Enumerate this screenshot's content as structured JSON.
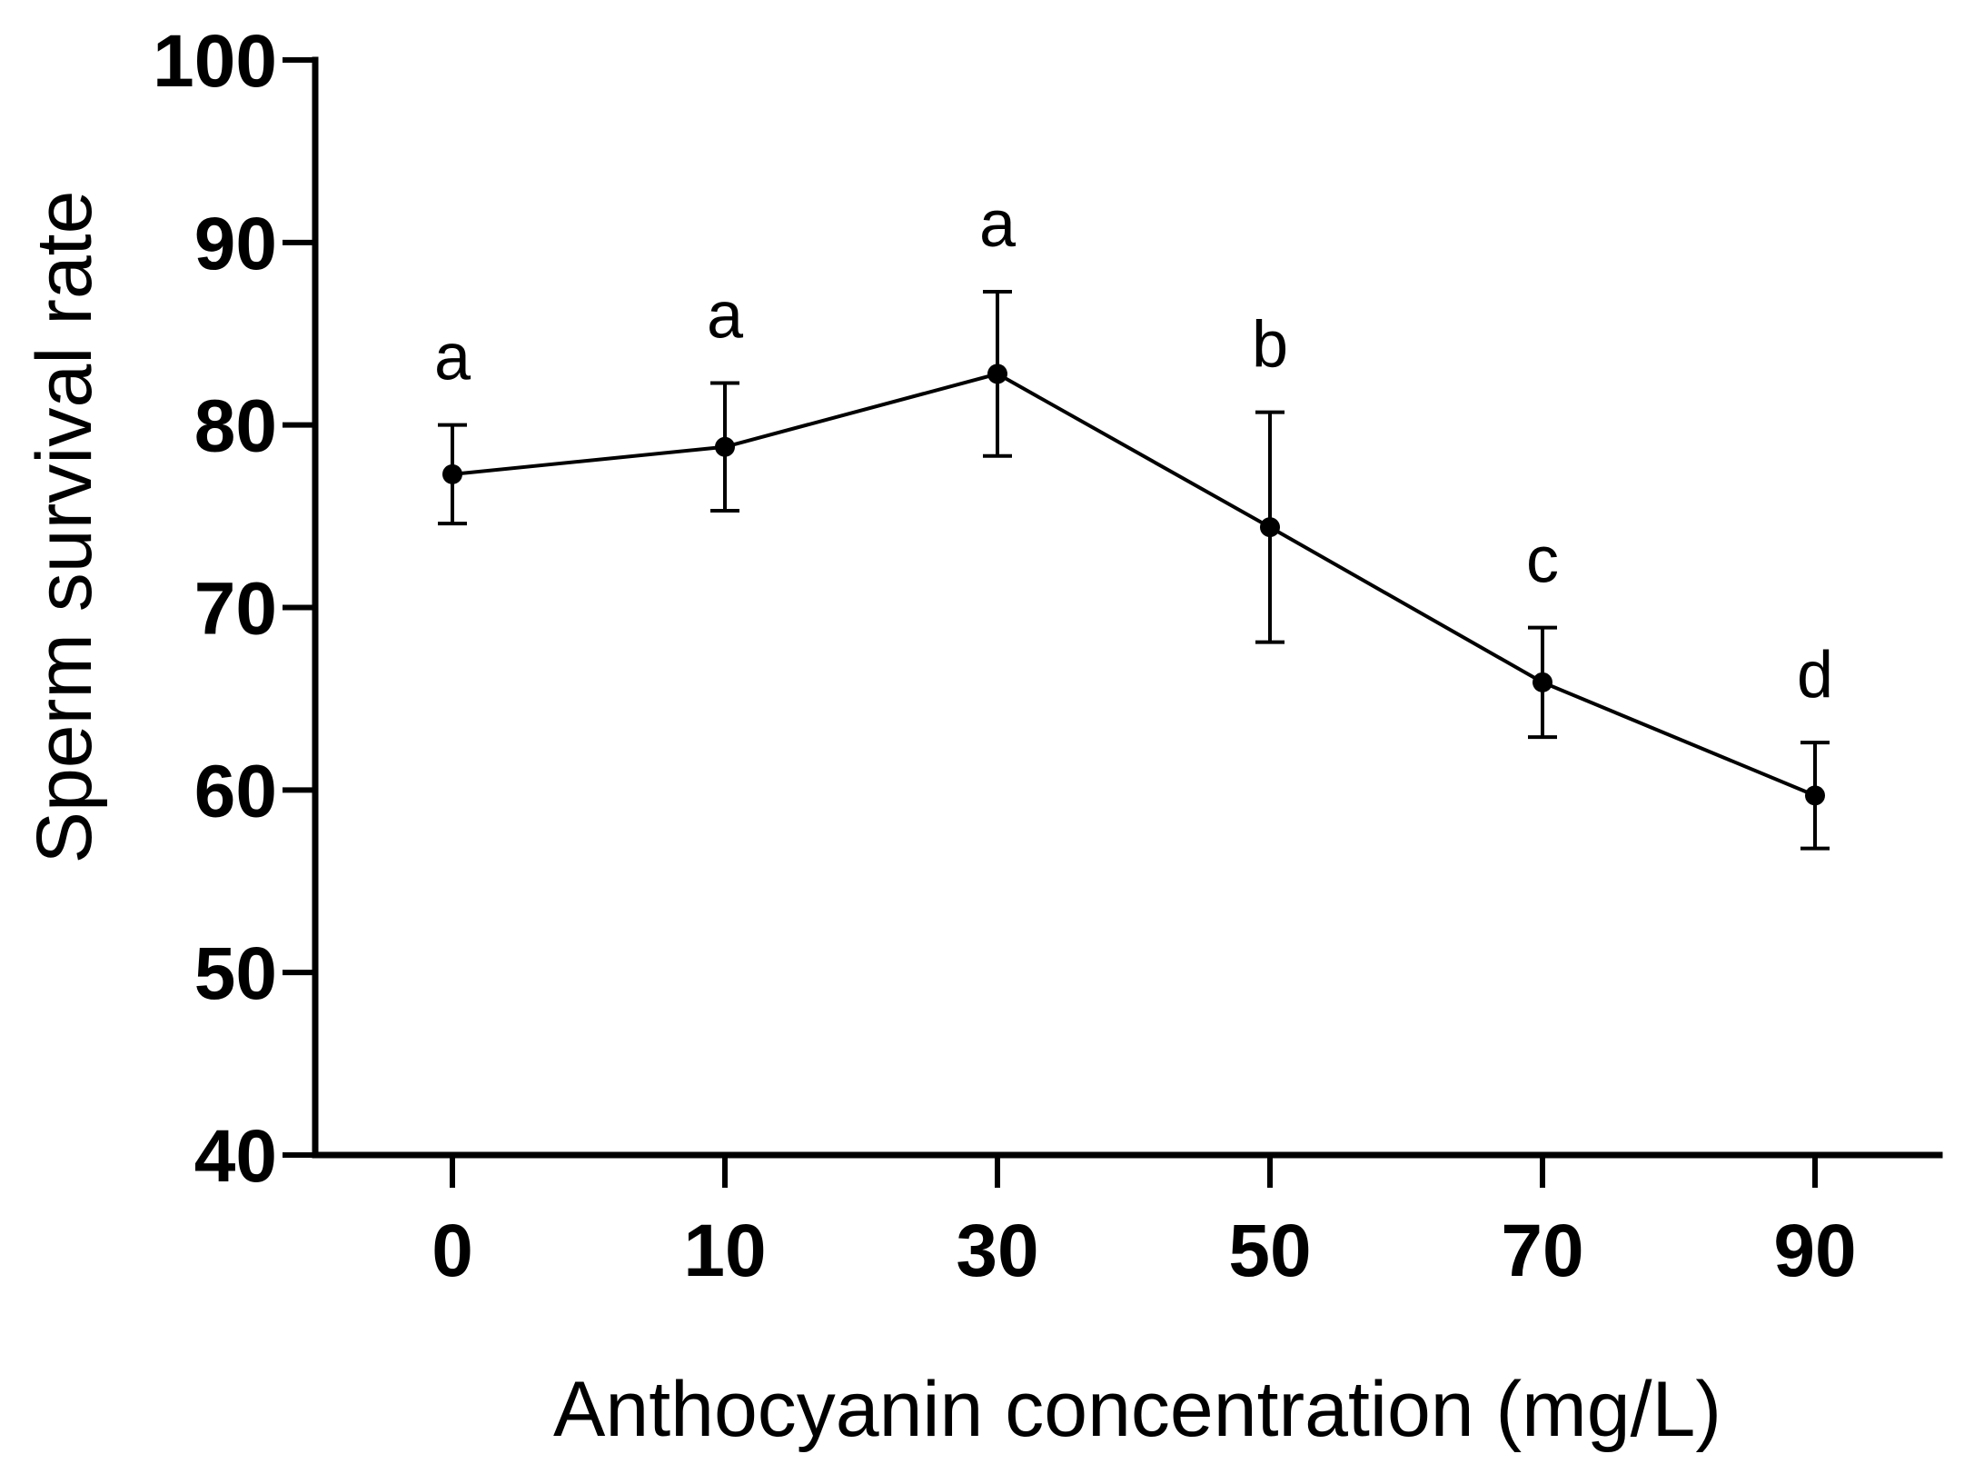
{
  "chart_data": {
    "type": "line",
    "title": "",
    "xlabel": "Anthocyanin concentration (mg/L)",
    "ylabel": "Sperm survival rate",
    "ylim": [
      40,
      100
    ],
    "yticks": [
      40,
      50,
      60,
      70,
      80,
      90,
      100
    ],
    "categories": [
      "0",
      "10",
      "30",
      "50",
      "70",
      "90"
    ],
    "series": [
      {
        "name": "Sperm survival rate",
        "values": [
          77.3,
          78.8,
          82.8,
          74.4,
          65.9,
          59.7
        ],
        "error": [
          2.7,
          3.5,
          4.5,
          6.3,
          3.0,
          2.9
        ],
        "significance": [
          "a",
          "a",
          "a",
          "b",
          "c",
          "d"
        ]
      }
    ],
    "grid": false,
    "legend": "none",
    "colors": {
      "line": "#000000",
      "axis": "#000000",
      "background": "#ffffff"
    }
  }
}
